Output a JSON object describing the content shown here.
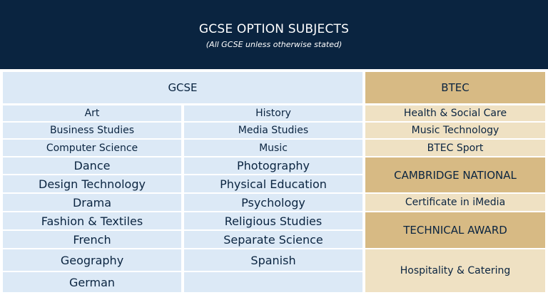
{
  "header": {
    "title": "GCSE OPTION SUBJECTS",
    "subtitle": "(All GCSE unless otherwise stated)"
  },
  "gcse_heading": "GCSE",
  "gcse_col1": [
    "Art",
    "Business Studies",
    "Computer Science",
    "Dance",
    "Design Technology",
    "Drama",
    "Fashion & Textiles",
    "French",
    "Geography",
    "German"
  ],
  "gcse_col2": [
    "History",
    "Media Studies",
    "Music",
    "Photography",
    "Physical Education",
    "Psychology",
    "Religious Studies",
    "Separate Science",
    "Spanish",
    ""
  ],
  "btec_heading": "BTEC",
  "btec_subjects": [
    "Health & Social Care",
    "Music Technology",
    "BTEC Sport"
  ],
  "cambridge_heading": "CAMBRIDGE NATIONAL",
  "cambridge_subjects": [
    "Certificate in iMedia"
  ],
  "technical_heading": "TECHNICAL AWARD",
  "technical_subjects": [
    "Hospitality & Catering"
  ],
  "colors": {
    "header_bg": "#0a2440",
    "text": "#0a2440",
    "gcse_bg": "#dce9f6",
    "gold_dark": "#d7ba84",
    "gold_light": "#efe1c3"
  }
}
